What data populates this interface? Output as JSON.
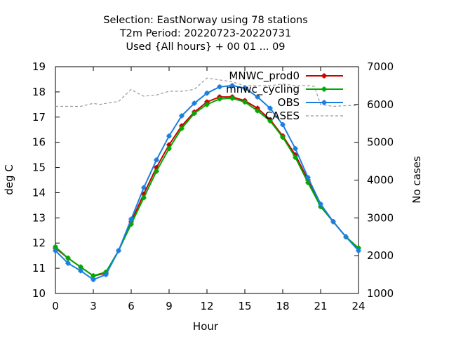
{
  "chart_data": {
    "type": "line",
    "title": [
      "Selection: EastNorway using    78 stations",
      "T2m   Period: 20220723-20220731",
      "Used {All hours} + 00 01 ... 09"
    ],
    "xlabel": "Hour",
    "ylabel": "deg C",
    "y2label": "No cases",
    "xlim": [
      0,
      24
    ],
    "ylim": [
      10,
      19
    ],
    "y2lim": [
      1000,
      7000
    ],
    "xticks": [
      0,
      3,
      6,
      9,
      12,
      15,
      18,
      21,
      24
    ],
    "yticks": [
      10,
      11,
      12,
      13,
      14,
      15,
      16,
      17,
      18,
      19
    ],
    "y2ticks": [
      1000,
      2000,
      3000,
      4000,
      5000,
      6000,
      7000
    ],
    "grid": false,
    "legend_position": "top-right",
    "x": [
      0,
      1,
      2,
      3,
      4,
      5,
      6,
      7,
      8,
      9,
      10,
      11,
      12,
      13,
      14,
      15,
      16,
      17,
      18,
      19,
      20,
      21,
      22,
      23,
      24
    ],
    "series": [
      {
        "name": "MNWC_prod0",
        "color": "#cc0000",
        "marker": "cross",
        "axis": "y",
        "values": [
          11.8,
          11.4,
          11.05,
          10.7,
          10.8,
          11.7,
          12.85,
          13.95,
          15.0,
          15.9,
          16.65,
          17.2,
          17.6,
          17.8,
          17.8,
          17.65,
          17.35,
          16.9,
          16.25,
          15.5,
          14.5,
          13.45,
          12.85,
          12.25,
          11.8
        ]
      },
      {
        "name": "mnwc_cycling",
        "color": "#00aa00",
        "marker": "cross",
        "axis": "y",
        "values": [
          11.85,
          11.4,
          11.05,
          10.7,
          10.85,
          11.7,
          12.75,
          13.8,
          14.85,
          15.75,
          16.55,
          17.15,
          17.5,
          17.72,
          17.75,
          17.6,
          17.25,
          16.85,
          16.2,
          15.4,
          14.4,
          13.45,
          12.85,
          12.25,
          11.8
        ]
      },
      {
        "name": "OBS",
        "color": "#1a7fe0",
        "marker": "cross",
        "axis": "y",
        "values": [
          11.7,
          11.2,
          10.9,
          10.55,
          10.75,
          11.7,
          12.95,
          14.2,
          15.3,
          16.25,
          17.05,
          17.55,
          17.95,
          18.2,
          18.25,
          18.15,
          17.8,
          17.35,
          16.7,
          15.75,
          14.6,
          13.55,
          12.85,
          12.25,
          11.7
        ]
      },
      {
        "name": "CASES",
        "color": "#999999",
        "style": "dashed",
        "axis": "y2",
        "x": [
          0,
          1,
          2,
          3,
          3.5,
          4,
          5,
          6,
          6.5,
          7,
          8,
          9,
          10,
          11,
          12,
          13,
          14,
          15,
          16,
          17,
          18,
          19,
          20,
          20.5,
          21,
          22,
          23,
          24
        ],
        "values": [
          5950,
          5950,
          5950,
          6030,
          6000,
          6030,
          6080,
          6400,
          6300,
          6220,
          6250,
          6350,
          6350,
          6400,
          6700,
          6650,
          6600,
          6500,
          6500,
          6500,
          6540,
          6500,
          6500,
          6480,
          6000,
          5950,
          5970,
          5980
        ]
      }
    ]
  }
}
